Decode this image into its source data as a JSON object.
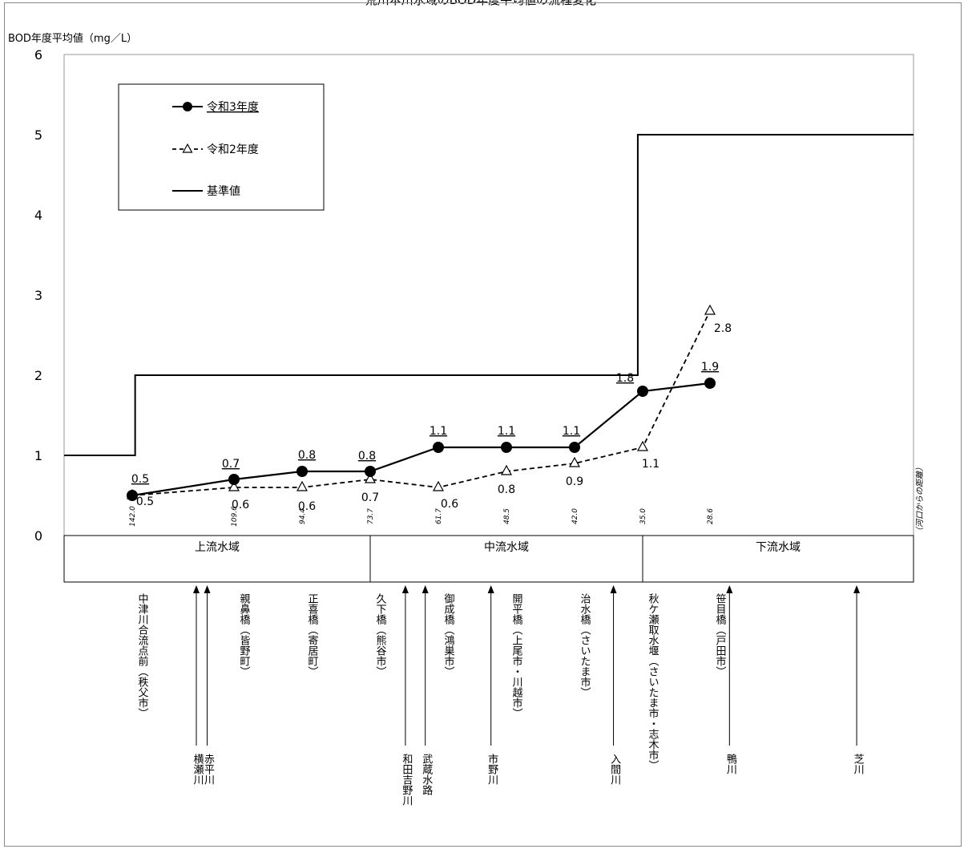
{
  "top_caption": "荒川本川水域のBOD年度平均値の流程変化",
  "chart_data": {
    "type": "line",
    "ylabel": "BOD年度平均値（mg／L）",
    "xlabel": "（河口からの距離）",
    "ylim": [
      0,
      6
    ],
    "yticks": [
      "0",
      "1",
      "2",
      "3",
      "4",
      "5",
      "6"
    ],
    "x": [
      142.0,
      109.6,
      94.4,
      73.7,
      61.7,
      48.5,
      42.0,
      35.0,
      28.6
    ],
    "x_tick_labels": [
      "142.0",
      "109.6",
      "94.4",
      "73.7",
      "61.7",
      "48.5",
      "42.0",
      "35.0",
      "28.6"
    ],
    "series": [
      {
        "name": "令和3年度",
        "values": [
          0.5,
          0.7,
          0.8,
          0.8,
          1.1,
          1.1,
          1.1,
          1.8,
          1.9
        ],
        "labels": [
          "0.5",
          "0.7",
          "0.8",
          "0.8",
          "1.1",
          "1.1",
          "1.1",
          "1.8",
          "1.9"
        ],
        "style": "solid",
        "marker": "filled-circle",
        "color": "#000000"
      },
      {
        "name": "令和2年度",
        "values": [
          0.5,
          0.6,
          0.6,
          0.7,
          0.6,
          0.8,
          0.9,
          1.1,
          2.8
        ],
        "labels": [
          "0.5",
          "0.6",
          "0.6",
          "0.7",
          "0.6",
          "0.8",
          "0.9",
          "1.1",
          "2.8"
        ],
        "style": "dashed",
        "marker": "open-triangle",
        "color": "#000000"
      },
      {
        "name": "基準値",
        "style": "step",
        "steps": [
          {
            "from": 155.0,
            "to": 141.0,
            "value": 1
          },
          {
            "from": 141.0,
            "to": 35.5,
            "value": 2
          },
          {
            "from": 35.5,
            "to": -9.0,
            "value": 5
          }
        ],
        "color": "#000000"
      }
    ],
    "legend_position": "top-left"
  },
  "zones": {
    "labels": [
      "上流水域",
      "中流水域",
      "下流水域"
    ],
    "boundaries_km": [
      73.7,
      35.0
    ]
  },
  "stations": [
    {
      "km": 142.0,
      "label": "中津川合流点前（秩父市）"
    },
    {
      "km": 109.6,
      "label": "親鼻橋（皆野町）"
    },
    {
      "km": 94.4,
      "label": "正喜橋（寄居町）"
    },
    {
      "km": 73.7,
      "label": "久下橋（熊谷市）"
    },
    {
      "km": 61.7,
      "label": "御成橋（鴻巣市）"
    },
    {
      "km": 48.5,
      "label": "開平橋（上尾市・川越市）"
    },
    {
      "km": 42.0,
      "label": "治水橋（さいたま市）"
    },
    {
      "km": 35.0,
      "label": "秋ケ瀬取水堰（さいたま市・志木市）"
    },
    {
      "km": 28.6,
      "label": "笹目橋（戸田市）"
    }
  ],
  "tributaries": [
    {
      "km": 120.0,
      "label": "横瀬川"
    },
    {
      "km": 117.0,
      "label": "赤平川"
    },
    {
      "km": 67.5,
      "label": "和田吉野川"
    },
    {
      "km": 64.0,
      "label": "武蔵水路"
    },
    {
      "km": 51.5,
      "label": "市野川"
    },
    {
      "km": 38.0,
      "label": "入間川"
    },
    {
      "km": 25.0,
      "label": "鴨川"
    },
    {
      "km": 1.5,
      "label": "芝川"
    }
  ]
}
